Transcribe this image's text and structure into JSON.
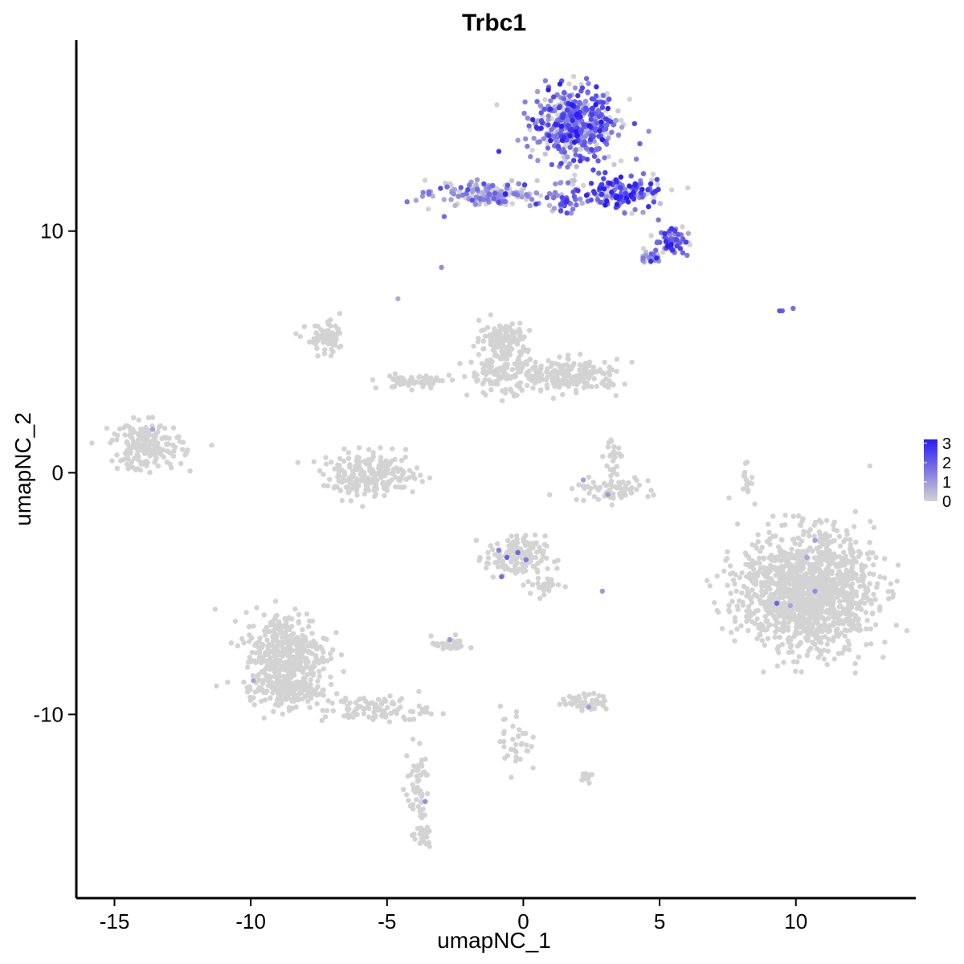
{
  "chart_data": {
    "type": "scatter",
    "title": "Trbc1",
    "xlabel": "umapNC_1",
    "ylabel": "umapNC_2",
    "xlim": [
      -16.4,
      14.4
    ],
    "ylim": [
      -17.6,
      17.9
    ],
    "xticks": [
      -15,
      -10,
      -5,
      0,
      5,
      10
    ],
    "yticks": [
      -10,
      0,
      10
    ],
    "xtick_labels": [
      "-15",
      "-10",
      "-5",
      "0",
      "5",
      "10"
    ],
    "ytick_labels": [
      "-10",
      "0",
      "10"
    ],
    "grid": false,
    "color_scale": {
      "low_color": "#d3d3d3",
      "high_color": "#2a1bf5",
      "min": 0,
      "max": 3.2,
      "ticks": [
        0,
        1,
        2,
        3
      ],
      "tick_labels": [
        "0",
        "1",
        "2",
        "3"
      ],
      "legend_position": "right"
    },
    "clusters": [
      {
        "id": "tcell-main",
        "cx": 1.9,
        "cy": 14.4,
        "rx": 1.5,
        "ry": 1.3,
        "n": 500,
        "expr": 1.6
      },
      {
        "id": "tcell-arm-left",
        "cx": -1.2,
        "cy": 11.5,
        "rx": 1.9,
        "ry": 0.5,
        "n": 160,
        "expr": 1.0
      },
      {
        "id": "tcell-arm-right",
        "cx": 3.6,
        "cy": 11.6,
        "rx": 1.3,
        "ry": 0.6,
        "n": 160,
        "expr": 2.0
      },
      {
        "id": "tcell-lower-right",
        "cx": 5.4,
        "cy": 9.6,
        "rx": 0.6,
        "ry": 0.5,
        "n": 80,
        "expr": 1.6
      },
      {
        "id": "tcell-tail",
        "cx": 4.7,
        "cy": 8.9,
        "rx": 0.4,
        "ry": 0.3,
        "n": 30,
        "expr": 1.2
      },
      {
        "id": "tcell-stem",
        "cx": 1.5,
        "cy": 11.3,
        "rx": 0.6,
        "ry": 0.6,
        "n": 40,
        "expr": 1.4
      },
      {
        "id": "top-center-lobe",
        "cx": -0.7,
        "cy": 5.6,
        "rx": 0.8,
        "ry": 0.6,
        "n": 110,
        "expr": 0
      },
      {
        "id": "top-center-right",
        "cx": 1.8,
        "cy": 4.0,
        "rx": 1.6,
        "ry": 0.6,
        "n": 200,
        "expr": 0
      },
      {
        "id": "top-center-mid",
        "cx": -0.8,
        "cy": 4.2,
        "rx": 1.1,
        "ry": 0.9,
        "n": 140,
        "expr": 0
      },
      {
        "id": "upper-left-lobe",
        "cx": -7.2,
        "cy": 5.5,
        "rx": 0.7,
        "ry": 0.6,
        "n": 70,
        "expr": 0
      },
      {
        "id": "central-stream",
        "cx": -4.0,
        "cy": 3.8,
        "rx": 1.2,
        "ry": 0.3,
        "n": 60,
        "expr": 0
      },
      {
        "id": "left-cluster",
        "cx": -13.8,
        "cy": 1.1,
        "rx": 1.2,
        "ry": 0.9,
        "n": 180,
        "expr": 0
      },
      {
        "id": "center-left-ring",
        "cx": -5.6,
        "cy": -0.1,
        "rx": 1.6,
        "ry": 0.8,
        "n": 220,
        "expr": 0
      },
      {
        "id": "mid-small-band",
        "cx": 3.2,
        "cy": -0.7,
        "rx": 1.3,
        "ry": 0.4,
        "n": 70,
        "expr": 0
      },
      {
        "id": "mid-small-top",
        "cx": 3.3,
        "cy": 0.6,
        "rx": 0.3,
        "ry": 0.8,
        "n": 25,
        "expr": 0
      },
      {
        "id": "right-large",
        "cx": 10.4,
        "cy": -4.9,
        "rx": 2.2,
        "ry": 2.2,
        "n": 1300,
        "expr": 0
      },
      {
        "id": "center-mid-cluster",
        "cx": -0.3,
        "cy": -3.5,
        "rx": 1.0,
        "ry": 0.8,
        "n": 140,
        "expr": 0
      },
      {
        "id": "center-mid-tail",
        "cx": 0.8,
        "cy": -4.6,
        "rx": 0.6,
        "ry": 0.5,
        "n": 30,
        "expr": 0
      },
      {
        "id": "lower-left-cluster",
        "cx": -8.7,
        "cy": -7.5,
        "rx": 1.4,
        "ry": 1.6,
        "n": 380,
        "expr": 0
      },
      {
        "id": "lower-left-arm",
        "cx": -5.4,
        "cy": -9.8,
        "rx": 1.8,
        "ry": 0.5,
        "n": 90,
        "expr": 0
      },
      {
        "id": "lower-left-base",
        "cx": -8.7,
        "cy": -9.0,
        "rx": 1.2,
        "ry": 0.6,
        "n": 140,
        "expr": 0
      },
      {
        "id": "lower-stream",
        "cx": -3.9,
        "cy": -13.0,
        "rx": 0.4,
        "ry": 1.7,
        "n": 55,
        "expr": 0
      },
      {
        "id": "lower-stream-base",
        "cx": -3.7,
        "cy": -15.1,
        "rx": 0.3,
        "ry": 0.4,
        "n": 25,
        "expr": 0
      },
      {
        "id": "lower-small-left",
        "cx": -2.7,
        "cy": -7.1,
        "rx": 0.6,
        "ry": 0.3,
        "n": 30,
        "expr": 0
      },
      {
        "id": "lower-center-stream",
        "cx": -0.3,
        "cy": -11.0,
        "rx": 0.5,
        "ry": 1.3,
        "n": 35,
        "expr": 0
      },
      {
        "id": "lower-center-right",
        "cx": 2.3,
        "cy": -9.5,
        "rx": 0.8,
        "ry": 0.3,
        "n": 60,
        "expr": 0
      },
      {
        "id": "lower-center-small",
        "cx": 2.4,
        "cy": -12.5,
        "rx": 0.3,
        "ry": 0.2,
        "n": 10,
        "expr": 0
      },
      {
        "id": "right-strip",
        "cx": 8.2,
        "cy": -0.2,
        "rx": 0.2,
        "ry": 0.8,
        "n": 15,
        "expr": 0
      }
    ],
    "points": [
      {
        "x": 9.4,
        "y": 6.7,
        "value": 2.2
      },
      {
        "x": 9.5,
        "y": 6.7,
        "value": 2.0
      },
      {
        "x": 9.9,
        "y": 6.8,
        "value": 1.8
      },
      {
        "x": -13.6,
        "y": 1.8,
        "value": 0.8
      },
      {
        "x": -4.6,
        "y": 7.2,
        "value": 0.7
      },
      {
        "x": -0.9,
        "y": -3.2,
        "value": 1.5
      },
      {
        "x": -0.6,
        "y": -3.5,
        "value": 2.0
      },
      {
        "x": -0.8,
        "y": -4.3,
        "value": 1.8
      },
      {
        "x": -0.2,
        "y": -3.3,
        "value": 1.9
      },
      {
        "x": 0.1,
        "y": -3.6,
        "value": 1.6
      },
      {
        "x": 9.3,
        "y": -5.4,
        "value": 1.9
      },
      {
        "x": 9.8,
        "y": -5.5,
        "value": 0.8
      },
      {
        "x": 10.7,
        "y": -4.9,
        "value": 1.2
      },
      {
        "x": 10.7,
        "y": -2.8,
        "value": 0.9
      },
      {
        "x": 10.4,
        "y": -3.5,
        "value": 0.8
      },
      {
        "x": 3.1,
        "y": -0.9,
        "value": 1.0
      },
      {
        "x": 2.2,
        "y": -0.3,
        "value": 0.9
      },
      {
        "x": -9.9,
        "y": -8.6,
        "value": 0.8
      },
      {
        "x": -3.6,
        "y": -13.6,
        "value": 1.2
      },
      {
        "x": -2.7,
        "y": -6.9,
        "value": 1.0
      },
      {
        "x": 2.4,
        "y": -9.7,
        "value": 0.9
      },
      {
        "x": 2.9,
        "y": -4.9,
        "value": 1.0
      },
      {
        "x": -2.9,
        "y": 10.6,
        "value": 1.8
      },
      {
        "x": -3.0,
        "y": 8.5,
        "value": 1.2
      }
    ]
  }
}
